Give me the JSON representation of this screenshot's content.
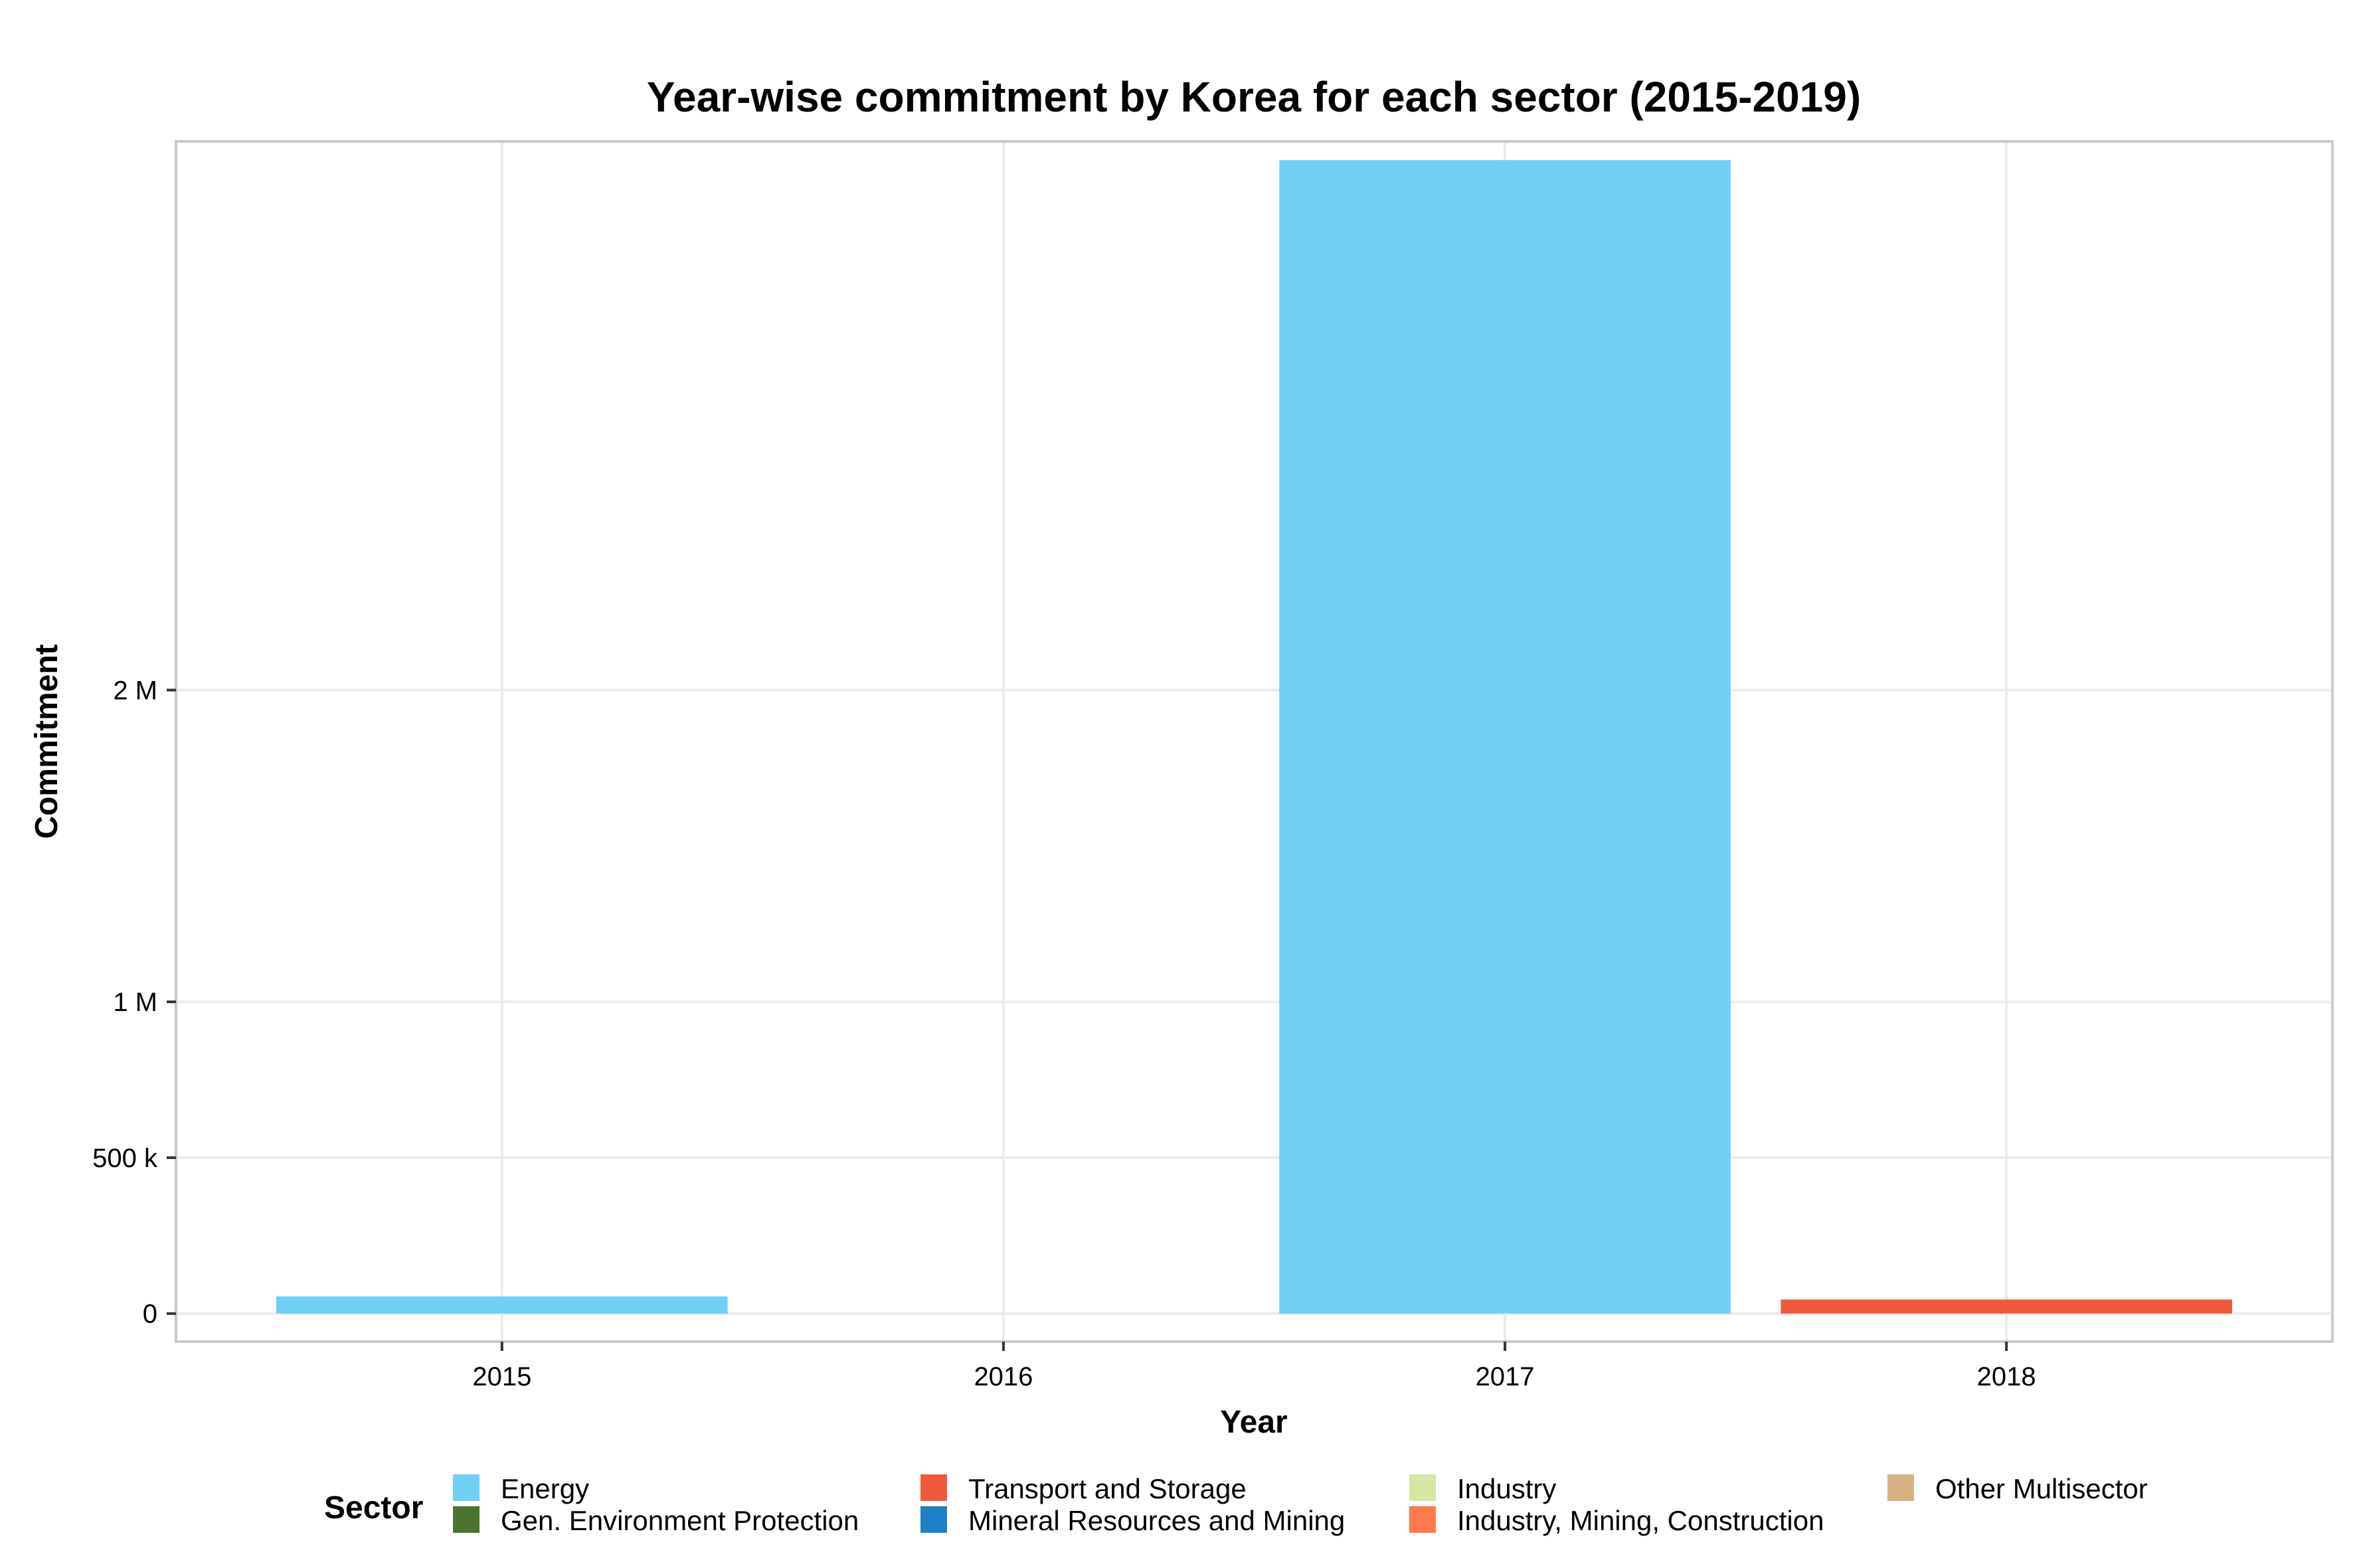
{
  "chart_data": {
    "type": "bar",
    "title": "Year-wise commitment by Korea for each sector (2015-2019)",
    "xlabel": "Year",
    "ylabel": "Commitment",
    "categories": [
      "2015",
      "2016",
      "2017",
      "2018"
    ],
    "ylim": [
      -90000,
      3760000
    ],
    "yticks": [
      {
        "value": 0,
        "label": "0"
      },
      {
        "value": 500000,
        "label": "500 k"
      },
      {
        "value": 1000000,
        "label": "1 M"
      },
      {
        "value": 2000000,
        "label": "2 M"
      }
    ],
    "grid": true,
    "legend": {
      "title": "Sector",
      "position": "bottom",
      "entries": [
        {
          "name": "Energy",
          "color": "#70cff5"
        },
        {
          "name": "Gen. Environment Protection",
          "color": "#4a7330"
        },
        {
          "name": "Transport and Storage",
          "color": "#ef5a3c"
        },
        {
          "name": "Mineral Resources and Mining",
          "color": "#1f7fc4"
        },
        {
          "name": "Industry",
          "color": "#d6e6a3"
        },
        {
          "name": "Industry, Mining, Construction",
          "color": "#ff7a4a"
        },
        {
          "name": "Other Multisector",
          "color": "#d4b083"
        }
      ]
    },
    "series": [
      {
        "name": "Energy",
        "color": "#70cff5",
        "values": [
          55000,
          0,
          3700000,
          0
        ]
      },
      {
        "name": "Gen. Environment Protection",
        "color": "#4a7330",
        "values": [
          0,
          0,
          0,
          0
        ]
      },
      {
        "name": "Transport and Storage",
        "color": "#ef5a3c",
        "values": [
          0,
          0,
          0,
          45000
        ]
      },
      {
        "name": "Mineral Resources and Mining",
        "color": "#1f7fc4",
        "values": [
          0,
          0,
          0,
          0
        ]
      },
      {
        "name": "Industry",
        "color": "#d6e6a3",
        "values": [
          0,
          0,
          0,
          0
        ]
      },
      {
        "name": "Industry, Mining, Construction",
        "color": "#ff7a4a",
        "values": [
          0,
          0,
          0,
          0
        ]
      },
      {
        "name": "Other Multisector",
        "color": "#d4b083",
        "values": [
          0,
          0,
          0,
          0
        ]
      }
    ]
  }
}
